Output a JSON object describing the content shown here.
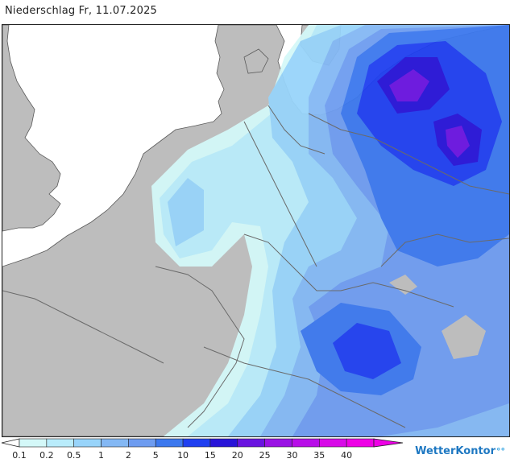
{
  "title": "Niederschlag Fr, 11.07.2025",
  "legend": {
    "labels": [
      "0.1",
      "0.2",
      "0.5",
      "1",
      "2",
      "5",
      "10",
      "15",
      "20",
      "25",
      "30",
      "35",
      "40"
    ],
    "colors": [
      "#d4f8f8",
      "#b9ecfb",
      "#98d4fa",
      "#84b8f4",
      "#6e9cf0",
      "#3c78ee",
      "#1f3ff0",
      "#2814d8",
      "#6a14e0",
      "#9a12e4",
      "#b80ee8",
      "#d80ae8",
      "#ee00e6"
    ]
  },
  "logo": {
    "text": "WetterKontor",
    "mark": "°°"
  },
  "colors": {
    "land": "#bdbdbd",
    "sea": "#ffffff",
    "borders": "#6a6a6a"
  }
}
